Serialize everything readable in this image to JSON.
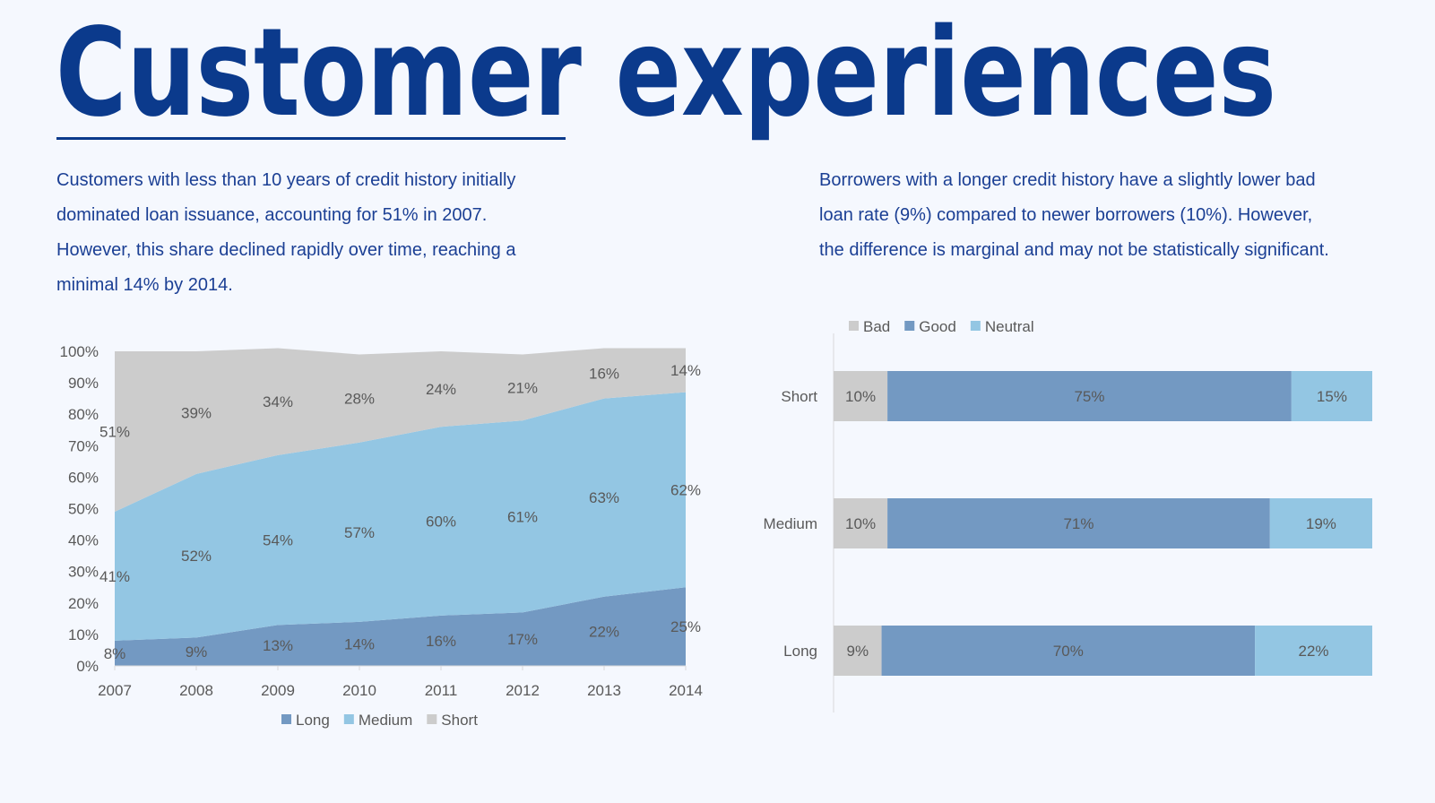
{
  "title": "Customer experiences",
  "left_text": "Customers with less than 10 years of credit history initially dominated loan issuance, accounting for 51% in 2007. However, this share declined rapidly over time, reaching a minimal 14% by 2014.",
  "right_text": "Borrowers with a longer credit history have a slightly lower bad loan rate (9%) compared to newer borrowers (10%). However, the difference is marginal and may not be statistically significant.",
  "chart_data": [
    {
      "type": "area",
      "stacked": true,
      "x": [
        "2007",
        "2008",
        "2009",
        "2010",
        "2011",
        "2012",
        "2013",
        "2014"
      ],
      "series": [
        {
          "name": "Long",
          "color": "#7399c2",
          "values": [
            8,
            9,
            13,
            14,
            16,
            17,
            22,
            25
          ]
        },
        {
          "name": "Medium",
          "color": "#93c6e3",
          "values": [
            41,
            52,
            54,
            57,
            60,
            61,
            63,
            62
          ]
        },
        {
          "name": "Short",
          "color": "#cccccc",
          "values": [
            51,
            39,
            34,
            28,
            24,
            21,
            16,
            14
          ]
        }
      ],
      "yticks": [
        "0%",
        "10%",
        "20%",
        "30%",
        "40%",
        "50%",
        "60%",
        "70%",
        "80%",
        "90%",
        "100%"
      ],
      "ylim": [
        0,
        100
      ],
      "legend": "bottom"
    },
    {
      "type": "bar",
      "orientation": "horizontal",
      "stacked": true,
      "categories": [
        "Short",
        "Medium",
        "Long"
      ],
      "series": [
        {
          "name": "Bad",
          "color": "#cccccc",
          "values": [
            10,
            10,
            9
          ]
        },
        {
          "name": "Good",
          "color": "#7399c2",
          "values": [
            75,
            71,
            70
          ]
        },
        {
          "name": "Neutral",
          "color": "#93c6e3",
          "values": [
            15,
            19,
            22
          ]
        }
      ],
      "legend": "top-left"
    }
  ]
}
